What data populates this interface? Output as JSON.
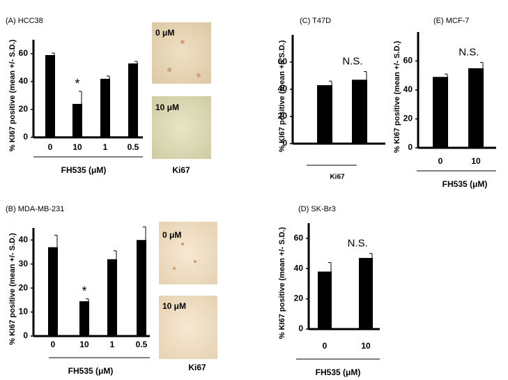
{
  "chart_data": [
    {
      "type": "bar",
      "title": "(A) HCC38",
      "y_label": "% KI67 positive (mean +/- S.D.)",
      "x_label": "FH535 (μM)",
      "categories": [
        "0",
        "10",
        "1",
        "0.5"
      ],
      "values": [
        59,
        24,
        42,
        53
      ],
      "errors": [
        1.5,
        9,
        2,
        1.5
      ],
      "color": "#000000",
      "ylim": [
        0,
        70
      ],
      "yticks": [
        0,
        20,
        40,
        60
      ],
      "annotation": "*",
      "image_labels": [
        "0 μM",
        "10 μM"
      ],
      "image_caption": "Ki67"
    },
    {
      "type": "bar",
      "title": "(B) MDA-MB-231",
      "y_label": "% KI67 positive (mean +/- S.D.)",
      "x_label": "FH535 (μM)",
      "categories": [
        "0",
        "10",
        "1",
        "0.5"
      ],
      "values": [
        37,
        14.5,
        32,
        40
      ],
      "errors": [
        5,
        1,
        3.5,
        5.5
      ],
      "color": "#000000",
      "ylim": [
        0,
        45
      ],
      "yticks": [
        0,
        10,
        20,
        30,
        40
      ],
      "annotation": "*",
      "image_labels": [
        "0 μM",
        "10 μM"
      ],
      "image_caption": "Ki67"
    },
    {
      "type": "bar",
      "title": "(C) T47D",
      "y_label": "% KI67 positive (mean +/- S.D.)",
      "x_label": "Ki67",
      "categories": [
        null,
        null
      ],
      "values": [
        43,
        47
      ],
      "errors": [
        3,
        6
      ],
      "color": "#000000",
      "ylim": [
        0,
        80
      ],
      "yticks": [
        0,
        20,
        40,
        60
      ],
      "annotation": "N.S."
    },
    {
      "type": "bar",
      "title": "(E) MCF-7",
      "y_label": "% KI67 positive (mean +/- S.D.)",
      "x_label": "FH535 (μM)",
      "categories": [
        "0",
        "10"
      ],
      "values": [
        49,
        55
      ],
      "errors": [
        2,
        4
      ],
      "color": "#000000",
      "ylim": [
        0,
        80
      ],
      "yticks": [
        0,
        20,
        40,
        60
      ],
      "annotation": "N.S."
    },
    {
      "type": "bar",
      "title": "(D) SK-Br3",
      "y_label": "% KI67 positive (mean +/- S.D.)",
      "x_label": "FH535 (μM)",
      "categories": [
        "0",
        "10"
      ],
      "values": [
        38,
        47
      ],
      "errors": [
        6,
        3
      ],
      "color": "#000000",
      "ylim": [
        0,
        70
      ],
      "yticks": [
        0,
        20,
        40,
        60
      ],
      "annotation": "N.S."
    }
  ]
}
